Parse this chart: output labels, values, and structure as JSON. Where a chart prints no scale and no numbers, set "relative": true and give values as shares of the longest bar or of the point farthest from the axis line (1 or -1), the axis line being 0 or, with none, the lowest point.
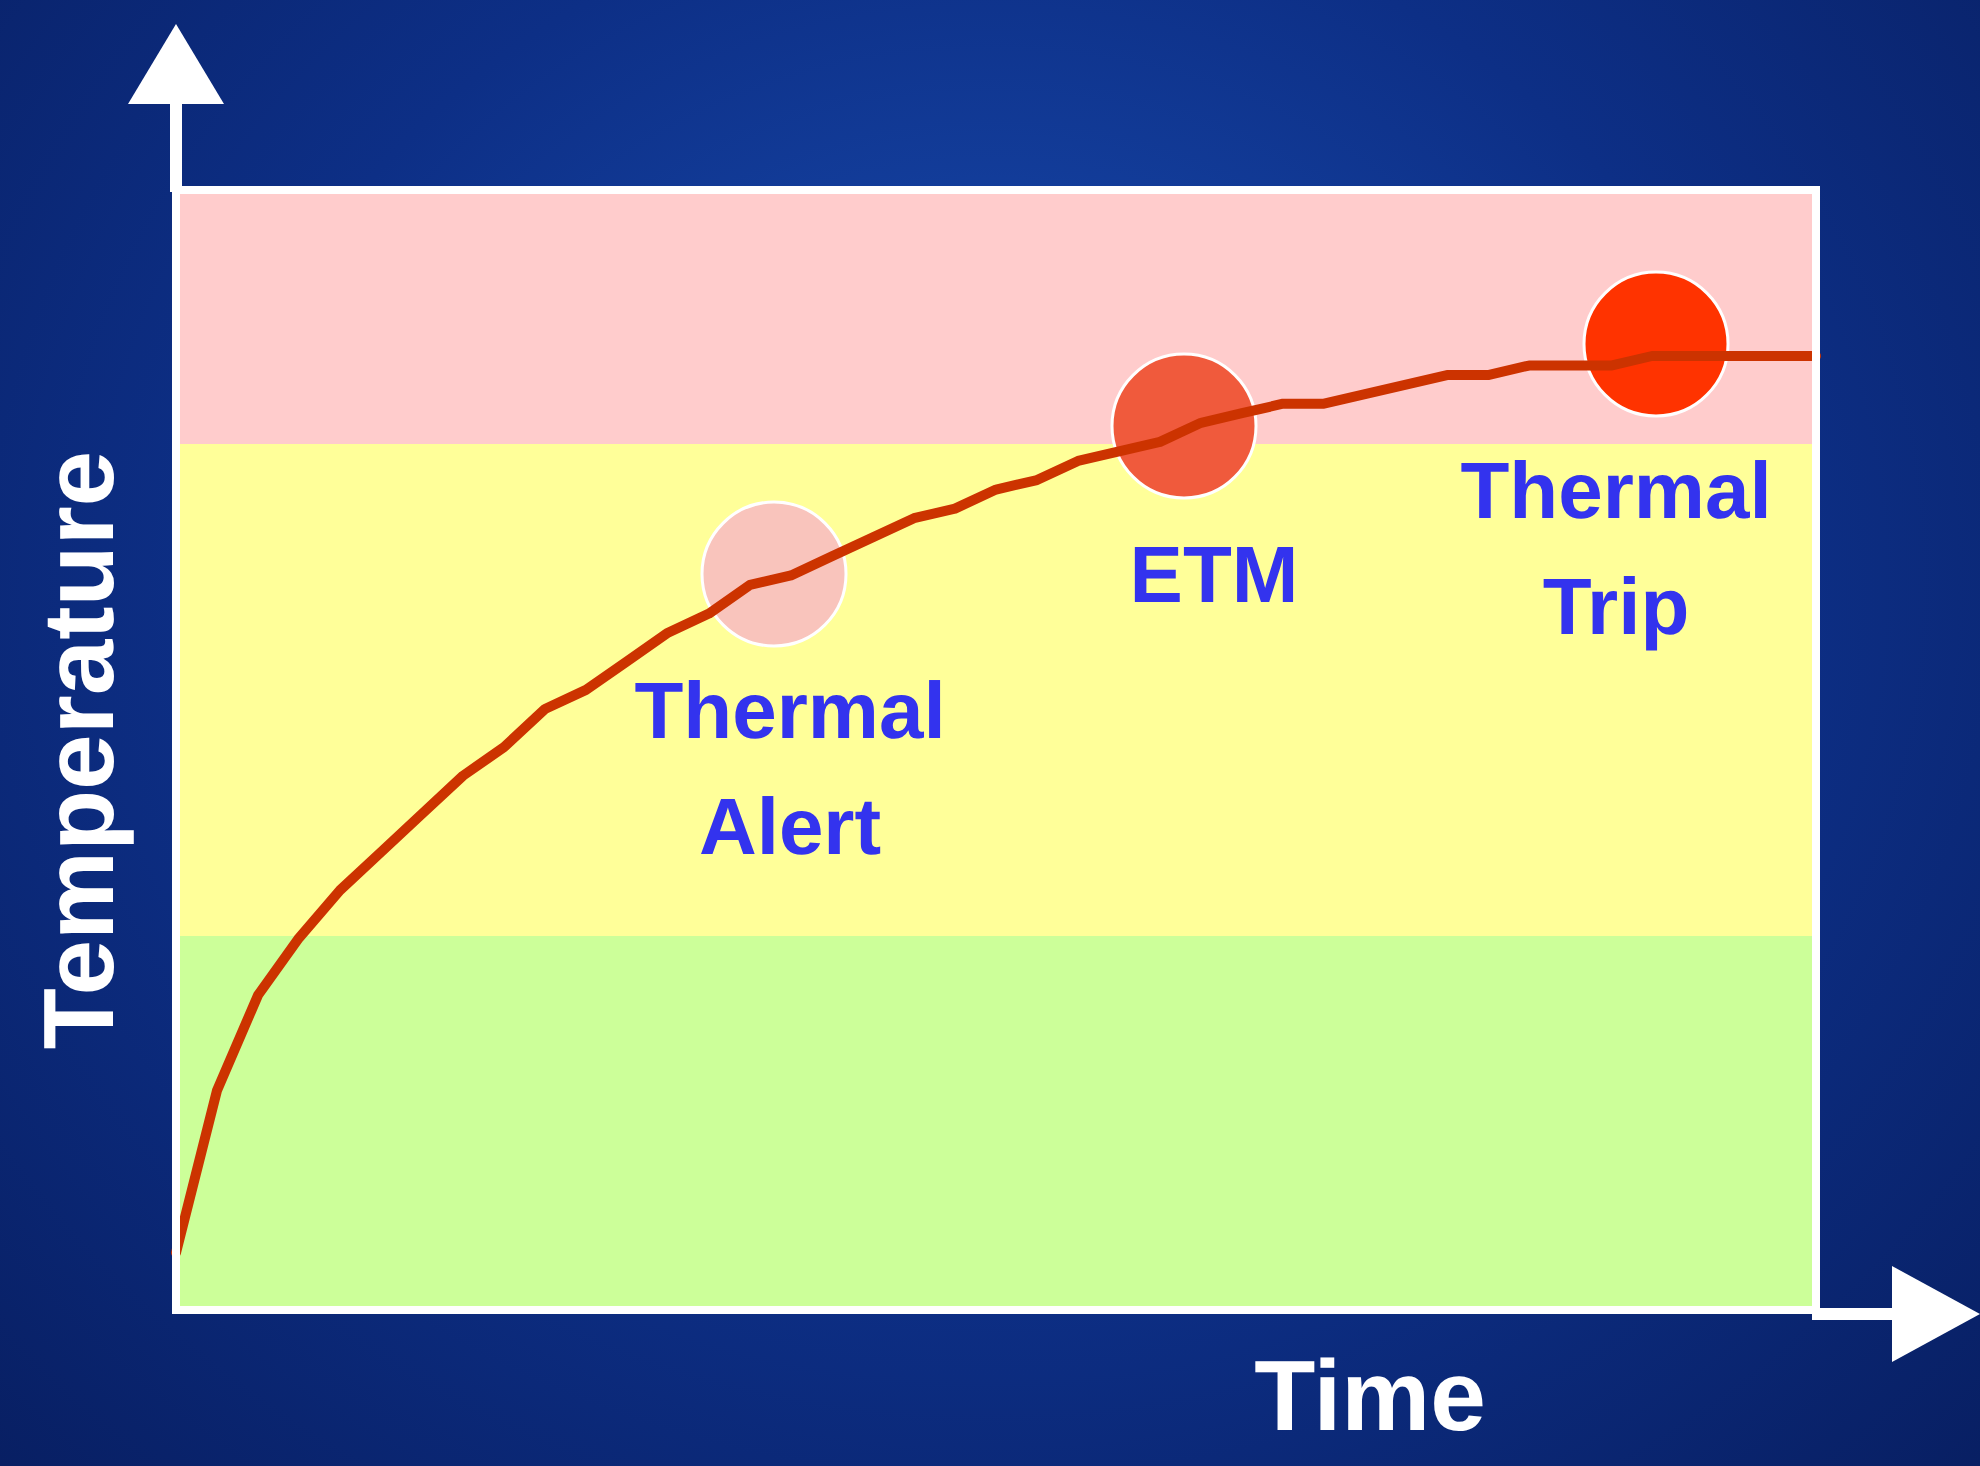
{
  "chart_data": {
    "type": "line",
    "relative": true,
    "xlabel": "Time",
    "ylabel": "Temperature",
    "categories": [
      null,
      null,
      null,
      null,
      null,
      null,
      null,
      null,
      null,
      null,
      null,
      null,
      null,
      null,
      null,
      null,
      null,
      null,
      null,
      null,
      null,
      null,
      null,
      null,
      null,
      null,
      null,
      null,
      null,
      null,
      null,
      null,
      null,
      null,
      null,
      null,
      null,
      null,
      null,
      null,
      null
    ],
    "series": [
      {
        "color": "#cc3300",
        "values": [
          0.06,
          0.23,
          0.33,
          0.39,
          0.44,
          0.48,
          0.52,
          0.56,
          0.59,
          0.63,
          0.65,
          0.68,
          0.71,
          0.73,
          0.76,
          0.77,
          0.79,
          0.81,
          0.83,
          0.84,
          0.86,
          0.87,
          0.89,
          0.9,
          0.91,
          0.93,
          0.94,
          0.95,
          0.95,
          0.96,
          0.97,
          0.98,
          0.98,
          0.99,
          0.99,
          0.99,
          1,
          1,
          1,
          1,
          1
        ]
      }
    ],
    "annotations": [
      "Thermal Alert",
      "ETM",
      "Thermal Trip"
    ]
  }
}
